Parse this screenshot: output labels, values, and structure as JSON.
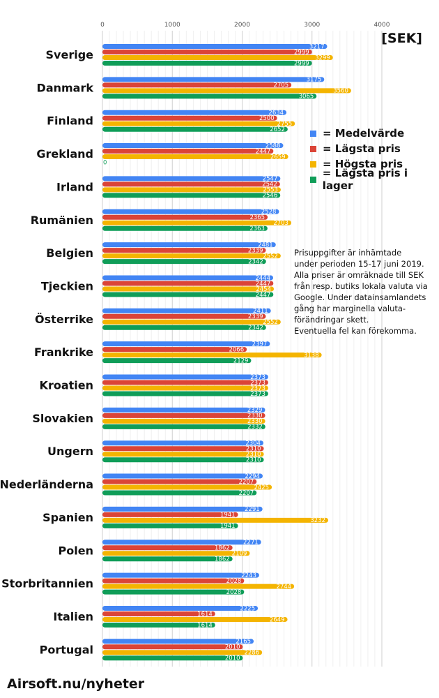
{
  "chart_data": {
    "type": "bar",
    "orientation": "horizontal",
    "unit_label": "[SEK]",
    "xlim": [
      0,
      4000
    ],
    "xticks": [
      0,
      1000,
      2000,
      3000,
      4000
    ],
    "legend_position": "right",
    "categories": [
      "Sverige",
      "Danmark",
      "Finland",
      "Grekland",
      "Irland",
      "Rumänien",
      "Belgien",
      "Tjeckien",
      "Österrike",
      "Frankrike",
      "Kroatien",
      "Slovakien",
      "Ungern",
      "Nederländerna",
      "Spanien",
      "Polen",
      "Storbritannien",
      "Italien",
      "Portugal"
    ],
    "series": [
      {
        "name": "= Medelvärde",
        "color": "#4285f4",
        "values": [
          3217,
          3175,
          2634,
          2588,
          2547,
          2528,
          2481,
          2444,
          2411,
          2397,
          2373,
          2329,
          2304,
          2294,
          2291,
          2271,
          2243,
          2225,
          2165
        ]
      },
      {
        "name": "= Lägsta pris",
        "color": "#db4437",
        "values": [
          2999,
          2705,
          2500,
          2447,
          2542,
          2365,
          2339,
          2447,
          2339,
          2066,
          2373,
          2330,
          2310,
          2207,
          1941,
          1862,
          2028,
          1614,
          2010
        ]
      },
      {
        "name": "= Högsta pris",
        "color": "#f4b400",
        "values": [
          3299,
          3560,
          2755,
          2659,
          2553,
          2703,
          2552,
          2454,
          2552,
          3138,
          2373,
          2330,
          2310,
          2425,
          3232,
          2109,
          2744,
          2649,
          2286
        ]
      },
      {
        "name": "= Lägsta pris i lager",
        "color": "#0f9d58",
        "values": [
          2999,
          3065,
          2652,
          0,
          2546,
          2363,
          2342,
          2447,
          2342,
          2129,
          2373,
          2332,
          2310,
          2207,
          1941,
          1862,
          2028,
          1614,
          2010
        ]
      }
    ]
  },
  "note": [
    "Prisuppgifter är inhämtade",
    "under perioden 15-17 juni 2019.",
    "Alla priser är omräknade till SEK",
    "från resp. butiks lokala valuta via",
    "Google. Under datainsamlandets",
    "gång har marginella valuta-",
    "förändringar skett.",
    "Eventuella fel kan förekomma."
  ],
  "footer": "Airsoft.nu/nyheter"
}
